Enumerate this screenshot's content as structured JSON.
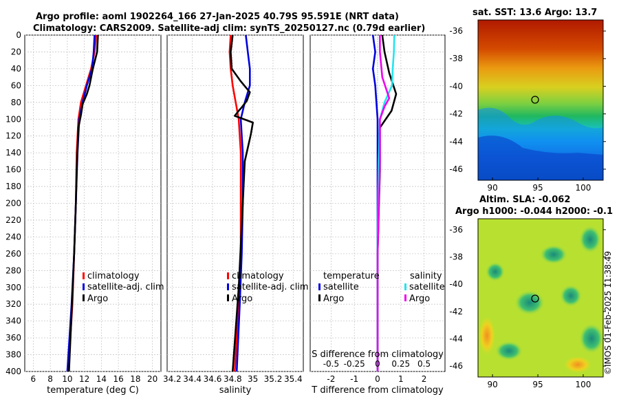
{
  "header": {
    "title_line1": "Argo profile: aoml 1902264_166 27-Jan-2025 40.79S 95.591E (NRT data)",
    "title_line2": "Climatology: CARS2009. Satellite-adj clim: synTS_20250127.nc (0.79d earlier)"
  },
  "credit": "©IMOS 01-Feb-2025 11:38:49",
  "colors": {
    "climatology": "#ff0000",
    "satellite": "#0000dd",
    "argo": "#000000",
    "sat_salinity": "#22e5ee",
    "argo_salinity": "#ee00ee"
  },
  "chart_data": [
    {
      "type": "line",
      "name": "temperature",
      "xlabel": "temperature (deg C)",
      "xlim": [
        5,
        21
      ],
      "xticks": [
        "6",
        "8",
        "10",
        "12",
        "14",
        "16",
        "18",
        "20"
      ],
      "ylim": [
        0,
        400
      ],
      "yticks": [
        "0",
        "20",
        "40",
        "60",
        "80",
        "100",
        "120",
        "140",
        "160",
        "180",
        "200",
        "220",
        "240",
        "260",
        "280",
        "300",
        "320",
        "340",
        "360",
        "380",
        "400"
      ],
      "legend": [
        "climatology",
        "satellite-adj. clim",
        "Argo"
      ],
      "series": [
        {
          "name": "climatology",
          "x": [
            13.4,
            13.2,
            12.8,
            12.2,
            11.6,
            11.3,
            11.1,
            11.0,
            10.8,
            10.6,
            10.1
          ],
          "y": [
            0,
            20,
            40,
            60,
            80,
            100,
            140,
            200,
            260,
            320,
            400
          ]
        },
        {
          "name": "satellite-adj. clim",
          "x": [
            13.2,
            13.1,
            12.9,
            12.3,
            11.8,
            11.4,
            11.2,
            11.0,
            10.8,
            10.5,
            10.0
          ],
          "y": [
            0,
            20,
            40,
            60,
            80,
            100,
            140,
            200,
            260,
            320,
            400
          ]
        },
        {
          "name": "Argo",
          "x": [
            13.6,
            13.5,
            13.0,
            12.6,
            12.3,
            11.8,
            11.6,
            11.3,
            11.1,
            11.0,
            10.8,
            10.5,
            10.2
          ],
          "y": [
            0,
            20,
            40,
            60,
            70,
            82,
            95,
            110,
            160,
            200,
            260,
            330,
            400
          ]
        }
      ]
    },
    {
      "type": "line",
      "name": "salinity",
      "xlabel": "salinity",
      "xlim": [
        34.15,
        35.5
      ],
      "xticks": [
        "34.2",
        "34.4",
        "34.6",
        "34.8",
        "35",
        "35.2",
        "35.4"
      ],
      "ylim": [
        0,
        400
      ],
      "legend": [
        "climatology",
        "satellite-adj. clim",
        "Argo"
      ],
      "series": [
        {
          "name": "climatology",
          "x": [
            34.78,
            34.77,
            34.78,
            34.8,
            34.83,
            34.86,
            34.88,
            34.88,
            34.88,
            34.86,
            34.82
          ],
          "y": [
            0,
            20,
            40,
            60,
            80,
            100,
            140,
            200,
            260,
            320,
            400
          ]
        },
        {
          "name": "satellite-adj. clim",
          "x": [
            34.93,
            34.95,
            34.97,
            34.97,
            34.92,
            34.88,
            34.9,
            34.9,
            34.89,
            34.87,
            34.84
          ],
          "y": [
            0,
            20,
            40,
            60,
            80,
            100,
            140,
            200,
            260,
            320,
            400
          ]
        },
        {
          "name": "Argo",
          "x": [
            34.8,
            34.78,
            34.79,
            34.88,
            34.97,
            34.94,
            34.89,
            34.86,
            34.82,
            35.0,
            34.98,
            34.92,
            34.9,
            34.88,
            34.86,
            34.83,
            34.8
          ],
          "y": [
            0,
            20,
            40,
            55,
            68,
            78,
            86,
            90,
            96,
            104,
            118,
            150,
            200,
            250,
            300,
            350,
            400
          ]
        }
      ]
    },
    {
      "type": "line",
      "name": "difference",
      "xlabel": "T difference from climatology",
      "xlabel_top": "S difference from climatology",
      "xlim": [
        -2.9,
        2.9
      ],
      "xticks": [
        "-2",
        "-1",
        "0",
        "1",
        "2"
      ],
      "xticks_top": [
        "-0.5",
        "-0.25",
        "0",
        "0.25",
        "0.5"
      ],
      "ylim": [
        0,
        400
      ],
      "legend_left_title": "temperature",
      "legend_left": [
        "satellite",
        "Argo"
      ],
      "legend_right_title": "salinity",
      "legend_right": [
        "satellite",
        "Argo"
      ],
      "series": [
        {
          "name": "T satellite",
          "x": [
            -0.2,
            -0.1,
            -0.2,
            -0.1,
            -0.05,
            0.0,
            0.0,
            0.0
          ],
          "y": [
            0,
            20,
            40,
            60,
            80,
            100,
            200,
            400
          ]
        },
        {
          "name": "T Argo",
          "x": [
            0.2,
            0.3,
            0.5,
            0.8,
            0.6,
            0.1,
            0.1,
            0.0,
            0.0
          ],
          "y": [
            0,
            20,
            45,
            70,
            90,
            110,
            160,
            260,
            400
          ]
        },
        {
          "name": "S satellite",
          "x": [
            0.72,
            0.7,
            0.65,
            0.62,
            0.3,
            0.1,
            0.05,
            0.0,
            0.0
          ],
          "y": [
            0,
            20,
            40,
            60,
            80,
            100,
            150,
            250,
            400
          ]
        },
        {
          "name": "S Argo",
          "x": [
            0.1,
            0.1,
            0.2,
            0.5,
            0.3,
            0.1,
            0.1,
            0.0,
            0.0
          ],
          "y": [
            0,
            20,
            50,
            75,
            85,
            100,
            150,
            260,
            400
          ]
        }
      ]
    },
    {
      "type": "heatmap",
      "name": "sst-map",
      "title": "sat. SST: 13.6 Argo: 13.7",
      "xticks": [
        "90",
        "95",
        "100"
      ],
      "yticks": [
        "-36",
        "-38",
        "-40",
        "-42",
        "-44",
        "-46"
      ],
      "marker": "float position (95.6E, 40.8S)"
    },
    {
      "type": "heatmap",
      "name": "sla-map",
      "title_line1": "Altim. SLA: -0.062",
      "title_line2": "Argo h1000: -0.044 h2000: -0.1",
      "xticks": [
        "90",
        "95",
        "100"
      ],
      "yticks": [
        "-36",
        "-38",
        "-40",
        "-42",
        "-44",
        "-46"
      ],
      "marker": "float position (95.6E, 40.8S)"
    }
  ]
}
